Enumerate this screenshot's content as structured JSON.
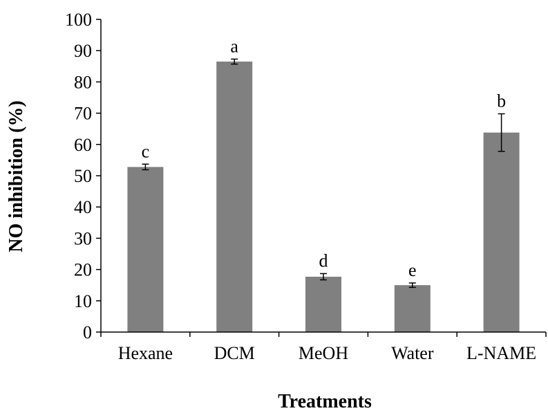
{
  "chart_data": {
    "type": "bar",
    "title": "",
    "xlabel": "Treatments",
    "ylabel": "NO inhibition (%)",
    "ylim": [
      0,
      100
    ],
    "yticks": [
      0,
      10,
      20,
      30,
      40,
      50,
      60,
      70,
      80,
      90,
      100
    ],
    "grid": false,
    "legend": "none",
    "bar_color": "#808080",
    "categories": [
      "Hexane",
      "DCM",
      "MeOH",
      "Water",
      "L-NAME"
    ],
    "values": [
      52.8,
      86.5,
      17.7,
      15.0,
      63.8
    ],
    "errors": [
      0.9,
      0.8,
      1.0,
      0.7,
      6.0
    ],
    "significance_letters": [
      "c",
      "a",
      "d",
      "e",
      "b"
    ]
  }
}
